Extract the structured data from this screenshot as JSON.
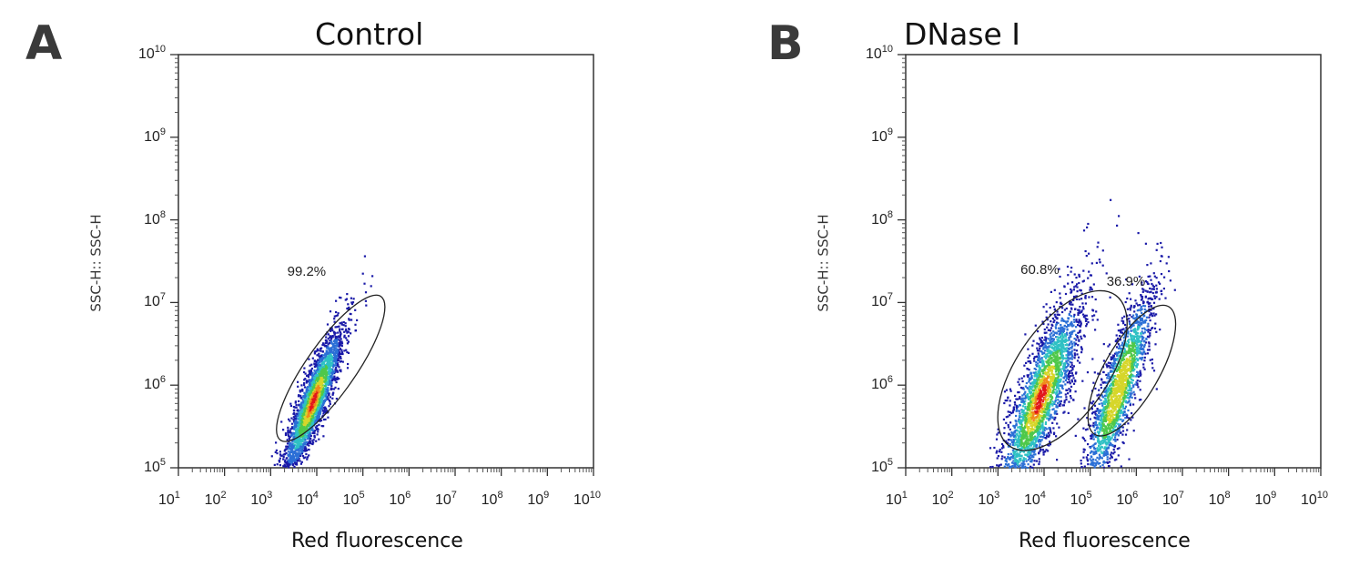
{
  "chart_data": [
    {
      "type": "scatter",
      "panel_label": "A",
      "title": "Control",
      "xlabel": "Red fluorescence",
      "ylabel": "SSC-H:: SSC-H",
      "x_scale": "log",
      "y_scale": "log",
      "xlim": [
        10,
        10000000000.0
      ],
      "ylim": [
        100000.0,
        10000000000.0
      ],
      "x_tick_labels": [
        {
          "base": "10",
          "exp": "1",
          "value": 10
        },
        {
          "base": "10",
          "exp": "2",
          "value": 100
        },
        {
          "base": "10",
          "exp": "3",
          "value": 1000
        },
        {
          "base": "10",
          "exp": "4",
          "value": 10000
        },
        {
          "base": "10",
          "exp": "5",
          "value": 100000
        },
        {
          "base": "10",
          "exp": "6",
          "value": 1000000
        },
        {
          "base": "10",
          "exp": "7",
          "value": 10000000
        },
        {
          "base": "10",
          "exp": "8",
          "value": 100000000
        },
        {
          "base": "10",
          "exp": "9",
          "value": 1000000000
        },
        {
          "base": "10",
          "exp": "10",
          "value": 10000000000
        }
      ],
      "y_tick_labels": [
        {
          "base": "10",
          "exp": "5",
          "value": 100000
        },
        {
          "base": "10",
          "exp": "6",
          "value": 1000000
        },
        {
          "base": "10",
          "exp": "7",
          "value": 10000000
        },
        {
          "base": "10",
          "exp": "8",
          "value": 100000000
        },
        {
          "base": "10",
          "exp": "9",
          "value": 1000000000
        },
        {
          "base": "10",
          "exp": "10",
          "value": 10000000000
        }
      ],
      "gates": [
        {
          "label": "99.2%",
          "center_x": 20000,
          "center_y": 1600000,
          "semi_major_decades": 1.9,
          "semi_minor_decades": 0.3,
          "angle_deg": 55
        }
      ],
      "populations": [
        {
          "center_x": 8000,
          "center_y": 650000,
          "spread_major_decades": 0.55,
          "spread_minor_decades": 0.13,
          "angle_deg": 55,
          "density": "high"
        }
      ],
      "density_colors": [
        "#1a1aa8",
        "#2b6fd6",
        "#2fc1c4",
        "#4fc84a",
        "#d6d62a",
        "#f08a1c",
        "#e2161b"
      ]
    },
    {
      "type": "scatter",
      "panel_label": "B",
      "title": "DNase I",
      "xlabel": "Red fluorescence",
      "ylabel": "SSC-H:: SSC-H",
      "x_scale": "log",
      "y_scale": "log",
      "xlim": [
        10,
        10000000000.0
      ],
      "ylim": [
        100000.0,
        10000000000.0
      ],
      "x_tick_labels": [
        {
          "base": "10",
          "exp": "1",
          "value": 10
        },
        {
          "base": "10",
          "exp": "2",
          "value": 100
        },
        {
          "base": "10",
          "exp": "3",
          "value": 1000
        },
        {
          "base": "10",
          "exp": "4",
          "value": 10000
        },
        {
          "base": "10",
          "exp": "5",
          "value": 100000
        },
        {
          "base": "10",
          "exp": "6",
          "value": 1000000
        },
        {
          "base": "10",
          "exp": "7",
          "value": 10000000
        },
        {
          "base": "10",
          "exp": "8",
          "value": 100000000
        },
        {
          "base": "10",
          "exp": "9",
          "value": 1000000000
        },
        {
          "base": "10",
          "exp": "10",
          "value": 10000000000
        }
      ],
      "y_tick_labels": [
        {
          "base": "10",
          "exp": "5",
          "value": 100000
        },
        {
          "base": "10",
          "exp": "6",
          "value": 1000000
        },
        {
          "base": "10",
          "exp": "7",
          "value": 10000000
        },
        {
          "base": "10",
          "exp": "8",
          "value": 100000000
        },
        {
          "base": "10",
          "exp": "9",
          "value": 1000000000
        },
        {
          "base": "10",
          "exp": "10",
          "value": 10000000000
        }
      ],
      "gates": [
        {
          "label": "60.8%",
          "center_x": 25000,
          "center_y": 1500000,
          "semi_major_decades": 2.0,
          "semi_minor_decades": 0.55,
          "angle_deg": 55
        },
        {
          "label": "36.9%",
          "center_x": 800000,
          "center_y": 1500000,
          "semi_major_decades": 1.6,
          "semi_minor_decades": 0.33,
          "angle_deg": 60
        }
      ],
      "populations": [
        {
          "center_x": 8000,
          "center_y": 700000,
          "spread_major_decades": 0.75,
          "spread_minor_decades": 0.22,
          "angle_deg": 55,
          "density": "high"
        },
        {
          "center_x": 400000,
          "center_y": 900000,
          "spread_major_decades": 0.7,
          "spread_minor_decades": 0.18,
          "angle_deg": 60,
          "density": "medium"
        }
      ],
      "density_colors": [
        "#1a1aa8",
        "#2b6fd6",
        "#2fc1c4",
        "#4fc84a",
        "#d6d62a",
        "#f08a1c",
        "#e2161b"
      ]
    }
  ]
}
